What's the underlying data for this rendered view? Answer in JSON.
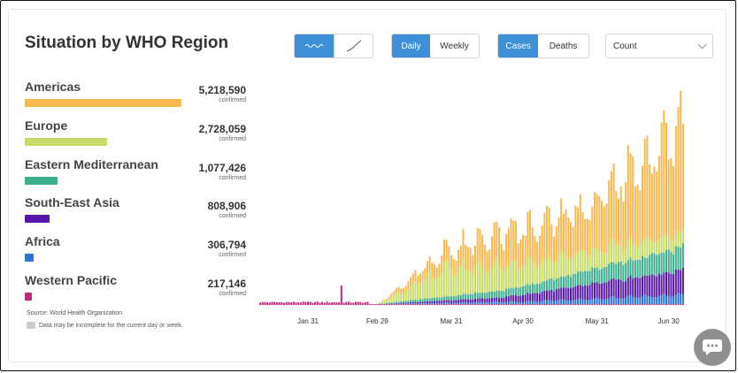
{
  "title": "Situation by WHO Region",
  "controls": {
    "scale_buttons": [
      {
        "icon": "linear-wave-icon",
        "active": true
      },
      {
        "icon": "log-curve-icon",
        "active": false
      }
    ],
    "period": {
      "daily": "Daily",
      "weekly": "Weekly",
      "active": "Daily"
    },
    "metric": {
      "cases": "Cases",
      "deaths": "Deaths",
      "active": "Cases"
    },
    "measure": {
      "selected": "Count"
    }
  },
  "regions": [
    {
      "name": "Americas",
      "value": "5,218,590",
      "unit": "confirmed",
      "color": "#f7b84f"
    },
    {
      "name": "Europe",
      "value": "2,728,059",
      "unit": "confirmed",
      "color": "#c7dc68"
    },
    {
      "name": "Eastern Mediterranean",
      "value": "1,077,426",
      "unit": "confirmed",
      "color": "#3eae8f"
    },
    {
      "name": "South-East Asia",
      "value": "808,906",
      "unit": "confirmed",
      "color": "#5718a8"
    },
    {
      "name": "Africa",
      "value": "306,794",
      "unit": "confirmed",
      "color": "#2c73d2"
    },
    {
      "name": "Western Pacific",
      "value": "217,146",
      "unit": "confirmed",
      "color": "#c2287e"
    }
  ],
  "source": "Source: World Health Organization",
  "note": "Data may be incomplete for the current day or week.",
  "chart_data": {
    "type": "bar",
    "stacked": true,
    "start_date": "2020-01-11",
    "x_ticks": [
      "Jan 31",
      "Feb 29",
      "Mar 31",
      "Apr 30",
      "May 31",
      "Jun 30"
    ],
    "series_order": [
      "Western Pacific",
      "Africa",
      "South-East Asia",
      "Eastern Mediterranean",
      "Europe",
      "Americas"
    ],
    "colors": {
      "Western Pacific": "#c2287e",
      "Africa": "#2c73d2",
      "South-East Asia": "#5718a8",
      "Eastern Mediterranean": "#3eae8f",
      "Europe": "#c7dc68",
      "Americas": "#f7b84f"
    },
    "ylim": [
      0,
      240000
    ],
    "grid": false,
    "legend": "left"
  }
}
